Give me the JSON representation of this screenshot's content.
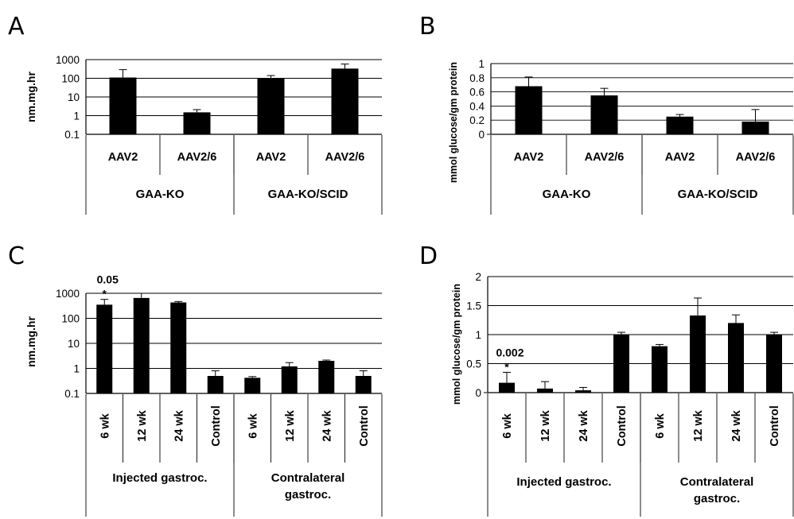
{
  "chart_data": [
    {
      "panel": "A",
      "type": "bar",
      "ylabel": "nm.mg.hr",
      "yscale": "log",
      "ylim": [
        0.1,
        1000
      ],
      "yticks": [
        "0.1",
        "1",
        "10",
        "100",
        "1000"
      ],
      "grid": true,
      "categories": [
        "AAV2",
        "AAV2/6",
        "AAV2",
        "AAV2/6"
      ],
      "groups": [
        {
          "label": "GAA-KO",
          "span": 2
        },
        {
          "label": "GAA-KO/SCID",
          "span": 2
        }
      ],
      "values": [
        110,
        1.5,
        100,
        330
      ],
      "errors": [
        180,
        0.6,
        40,
        250
      ]
    },
    {
      "panel": "B",
      "type": "bar",
      "ylabel": "mmol glucose/gm protein",
      "yscale": "linear",
      "ylim": [
        0,
        1
      ],
      "yticks": [
        "0",
        "0.2",
        "0.4",
        "0.6",
        "0.8",
        "1"
      ],
      "grid": true,
      "categories": [
        "AAV2",
        "AAV2/6",
        "AAV2",
        "AAV2/6"
      ],
      "groups": [
        {
          "label": "GAA-KO",
          "span": 2
        },
        {
          "label": "GAA-KO/SCID",
          "span": 2
        }
      ],
      "values": [
        0.68,
        0.55,
        0.25,
        0.18
      ],
      "errors": [
        0.13,
        0.1,
        0.03,
        0.17
      ]
    },
    {
      "panel": "C",
      "type": "bar",
      "ylabel": "nm.mg.hr",
      "yscale": "log",
      "ylim": [
        0.1,
        1000
      ],
      "yticks": [
        "0.1",
        "1",
        "10",
        "100",
        "1000"
      ],
      "grid": true,
      "categories": [
        "6 wk",
        "12 wk",
        "24 wk",
        "Control",
        "6 wk",
        "12 wk",
        "24 wk",
        "Control"
      ],
      "groups": [
        {
          "label": "Injected gastroc.",
          "span": 4
        },
        {
          "label": "Contralateral gastroc.",
          "span": 4
        }
      ],
      "values": [
        350,
        650,
        430,
        0.5,
        0.42,
        1.2,
        2.0,
        0.5
      ],
      "errors": [
        220,
        350,
        40,
        0.3,
        0.05,
        0.5,
        0.15,
        0.3
      ],
      "annotations": [
        {
          "index": 0,
          "lines": [
            "0.05",
            "*"
          ]
        }
      ]
    },
    {
      "panel": "D",
      "type": "bar",
      "ylabel": "mmol glucose/gm protein",
      "yscale": "linear",
      "ylim": [
        0,
        2
      ],
      "yticks": [
        "0",
        "0.5",
        "1",
        "1.5",
        "2"
      ],
      "grid": true,
      "categories": [
        "6 wk",
        "12 wk",
        "24 wk",
        "Control",
        "6 wk",
        "12 wk",
        "24 wk",
        "Control"
      ],
      "groups": [
        {
          "label": "Injected gastroc.",
          "span": 4
        },
        {
          "label": "Contralateral gastroc.",
          "span": 4
        }
      ],
      "values": [
        0.17,
        0.07,
        0.04,
        1.0,
        0.8,
        1.33,
        1.2,
        1.0
      ],
      "errors": [
        0.18,
        0.12,
        0.05,
        0.04,
        0.03,
        0.3,
        0.14,
        0.04
      ],
      "annotations": [
        {
          "index": 0,
          "lines": [
            "0.002",
            "*"
          ]
        }
      ]
    }
  ]
}
